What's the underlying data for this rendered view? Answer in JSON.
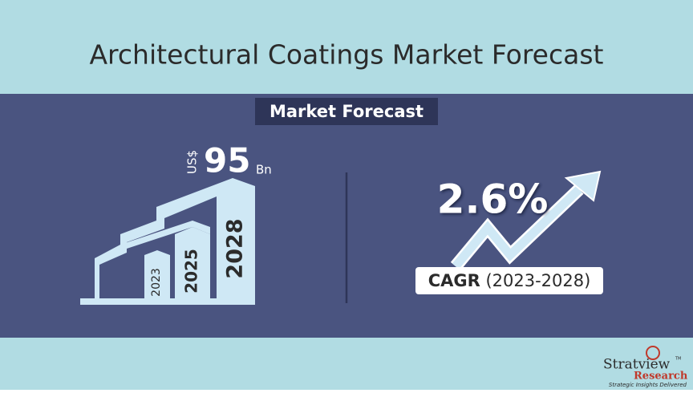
{
  "title": "Architectural Coatings Market Forecast",
  "section_label": "Market Forecast",
  "market_size": {
    "currency": "US$",
    "value": 95,
    "unit": "Bn"
  },
  "years": [
    "2023",
    "2025",
    "2028"
  ],
  "cagr": {
    "value": "2.6%",
    "label": "CAGR",
    "period": "(2023-2028)"
  },
  "logo": {
    "name": "Stratview",
    "trademark": "TM",
    "sub": "Research",
    "tagline": "Strategic Insights Delivered"
  }
}
